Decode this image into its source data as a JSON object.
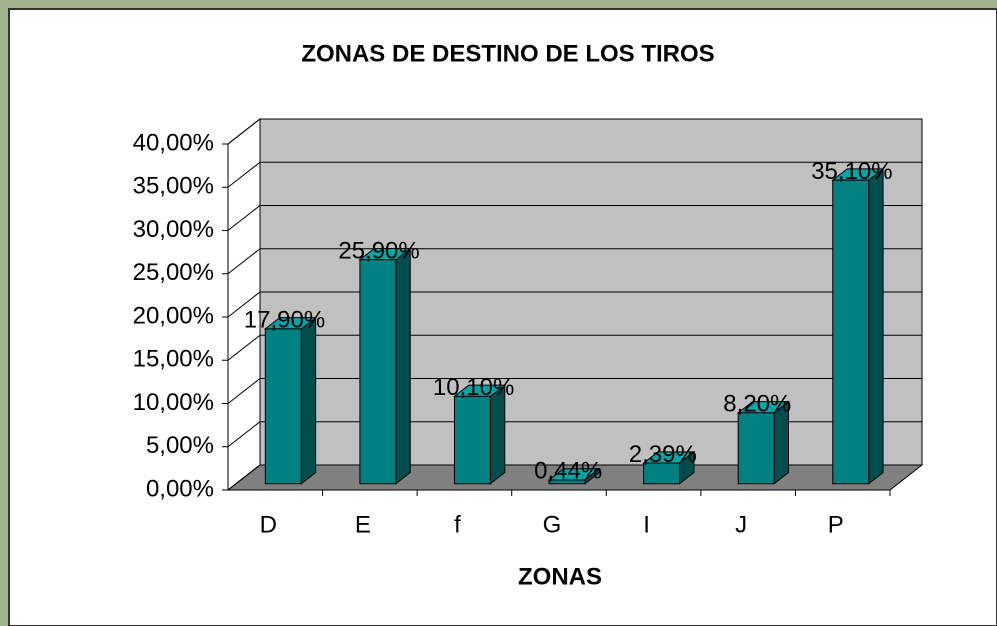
{
  "chart_data": {
    "type": "bar3d",
    "title": "ZONAS DE DESTINO DE LOS TIROS",
    "x_label": "ZONAS",
    "categories": [
      "D",
      "E",
      "f",
      "G",
      "I",
      "J",
      "P"
    ],
    "values": [
      17.9,
      25.9,
      10.1,
      0.44,
      2.39,
      8.2,
      35.1
    ],
    "value_labels": [
      "17,90%",
      "25,90%",
      "10,10%",
      "0,44%",
      "2,39%",
      "8,20%",
      "35,10%"
    ],
    "color": "#008080",
    "ylim": [
      0,
      40
    ],
    "yticks": [
      {
        "value": 0,
        "label": "0,00%"
      },
      {
        "value": 5,
        "label": "5,00%"
      },
      {
        "value": 10,
        "label": "10,00%"
      },
      {
        "value": 15,
        "label": "15,00%"
      },
      {
        "value": 20,
        "label": "20,00%"
      },
      {
        "value": 25,
        "label": "25,00%"
      },
      {
        "value": 30,
        "label": "30,00%"
      },
      {
        "value": 35,
        "label": "35,00%"
      },
      {
        "value": 40,
        "label": "40,00%"
      }
    ],
    "grid": true
  }
}
